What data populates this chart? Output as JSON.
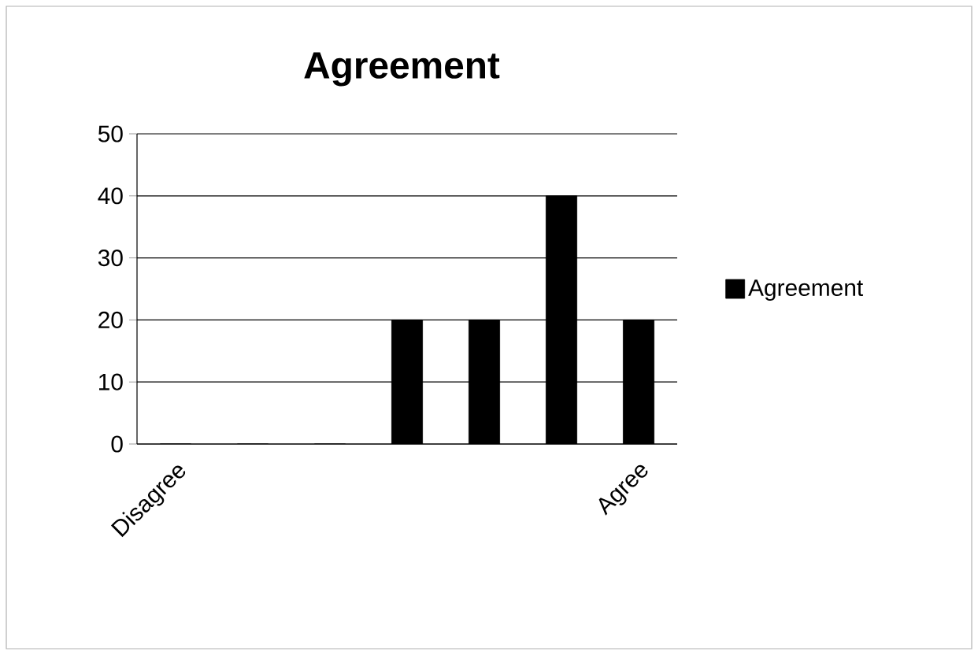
{
  "chart_data": {
    "type": "bar",
    "title": "Agreement",
    "categories": [
      "Disagree",
      null,
      null,
      null,
      null,
      null,
      "Agree"
    ],
    "series": [
      {
        "name": "Agreement",
        "color": "#000000",
        "values": [
          0,
          0,
          0,
          20,
          20,
          40,
          20
        ]
      }
    ],
    "ylim": [
      0,
      50
    ],
    "yticks": [
      0,
      10,
      20,
      30,
      40,
      50
    ],
    "grid": "y",
    "legend": "right"
  }
}
